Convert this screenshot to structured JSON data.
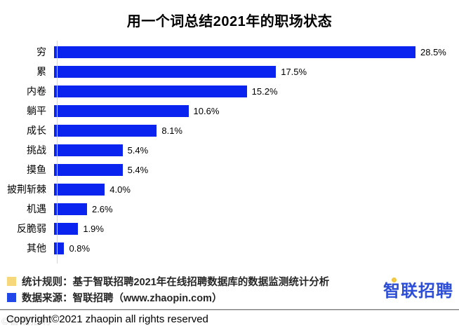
{
  "chart_data": {
    "type": "bar",
    "orientation": "horizontal",
    "title": "用一个词总结2021年的职场状态",
    "categories": [
      "穷",
      "累",
      "内卷",
      "躺平",
      "成长",
      "挑战",
      "摸鱼",
      "披荆斩棘",
      "机遇",
      "反脆弱",
      "其他"
    ],
    "values": [
      28.5,
      17.5,
      15.2,
      10.6,
      8.1,
      5.4,
      5.4,
      4.0,
      2.6,
      1.9,
      0.8
    ],
    "value_labels": [
      "28.5%",
      "17.5%",
      "15.2%",
      "10.6%",
      "8.1%",
      "5.4%",
      "5.4%",
      "4.0%",
      "2.6%",
      "1.9%",
      "0.8%"
    ],
    "xlabel": "",
    "ylabel": "",
    "xlim": [
      0,
      30
    ],
    "grid": false,
    "legend_position": "none",
    "bar_color": "#0a23ee"
  },
  "footer": {
    "notes": [
      {
        "swatch_color": "#f7d77c",
        "text": "统计规则：基于智联招聘2021年在线招聘数据库的数据监测统计分析"
      },
      {
        "swatch_color": "#2247e9",
        "text": "数据来源：智联招聘（www.zhaopin.com）"
      }
    ],
    "logo_text": "智联招聘",
    "logo_color": "#2d4ed6",
    "logo_accent_color": "#f2c53d",
    "copyright": "Copyright©2021 zhaopin all rights reserved",
    "watermark": "©智联招聘"
  }
}
